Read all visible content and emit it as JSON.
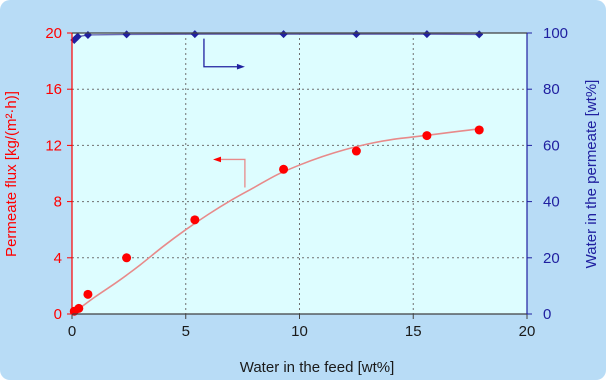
{
  "chart_data": {
    "type": "scatter",
    "colors": {
      "outer_background": "#b8dcf6",
      "plot_background": "#ddfdff",
      "left_series": "#ff0000",
      "right_series": "#2020a0",
      "fit_line": "#e88a8a",
      "grid": "#707070"
    },
    "x_axis": {
      "label": "Water in the feed [wt%]",
      "range": [
        0,
        20
      ],
      "ticks": [
        0,
        5,
        10,
        15,
        20
      ],
      "tick_labels": [
        "0",
        "5",
        "10",
        "15",
        "20"
      ],
      "grid": true
    },
    "y_left": {
      "label": "Permeate flux [kg/(m²·h)]",
      "range": [
        0,
        20
      ],
      "ticks": [
        0,
        4,
        8,
        12,
        16,
        20
      ],
      "tick_labels": [
        "0",
        "4",
        "8",
        "12",
        "16",
        "20"
      ],
      "color": "#ff0000"
    },
    "y_right": {
      "label": "Water in the permeate [wt%]",
      "range": [
        0,
        100
      ],
      "ticks": [
        0,
        20,
        40,
        60,
        80,
        100
      ],
      "tick_labels": [
        "0",
        "20",
        "40",
        "60",
        "80",
        "100"
      ],
      "color": "#2020a0"
    },
    "series": [
      {
        "axis": "left",
        "marker": "circle",
        "x": [
          0.1,
          0.3,
          0.7,
          2.4,
          5.4,
          9.3,
          12.5,
          15.6,
          17.9
        ],
        "y": [
          0.2,
          0.4,
          1.4,
          4.0,
          6.7,
          10.3,
          11.6,
          12.7,
          13.1
        ]
      },
      {
        "axis": "right",
        "marker": "diamond",
        "x": [
          0.1,
          0.25,
          0.7,
          2.4,
          5.4,
          9.3,
          12.5,
          15.6,
          17.9
        ],
        "y": [
          97.5,
          98.7,
          99.3,
          99.5,
          99.6,
          99.6,
          99.6,
          99.6,
          99.5
        ]
      }
    ],
    "fit_curve": {
      "axis": "left",
      "x": [
        0,
        1,
        2,
        3,
        4,
        5,
        6,
        7,
        8,
        9,
        10,
        11,
        12,
        13,
        14,
        15,
        16,
        17,
        18
      ],
      "y": [
        0,
        1.2,
        2.3,
        3.5,
        4.8,
        6.0,
        7.1,
        8.1,
        9.0,
        9.9,
        10.6,
        11.2,
        11.7,
        12.1,
        12.4,
        12.6,
        12.8,
        13.0,
        13.2
      ]
    },
    "annotations": [
      {
        "arrow": "pointing-left",
        "refers_to": "left axis",
        "color": "#ff0000"
      },
      {
        "arrow": "pointing-right",
        "refers_to": "right axis",
        "color": "#2020a0"
      }
    ]
  }
}
